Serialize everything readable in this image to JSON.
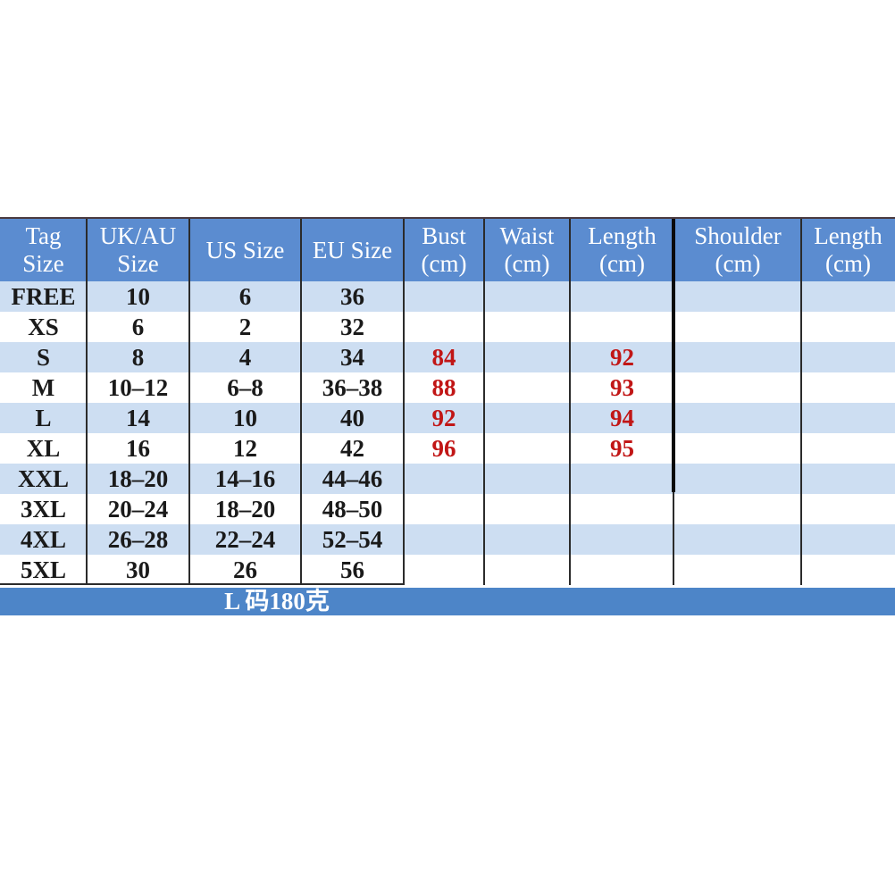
{
  "meta": {
    "description": "Clothing size conversion chart with measurements"
  },
  "colors": {
    "header_bg": "#5b8cd0",
    "footer_bg": "#4d85c8",
    "stripe_light": "#cddef2",
    "row_white": "#ffffff",
    "header_text": "#ffffff",
    "text_dark": "#1a1a1a",
    "text_red": "#c11616",
    "border": "#2b2b2b",
    "border_heavy": "#0a0a0a",
    "top_border": "#4a3a40"
  },
  "chart_data": {
    "type": "table",
    "title": "",
    "columns": [
      {
        "label": "Tag Size",
        "label_lines": [
          "Tag",
          "Size"
        ],
        "value_style": "dark"
      },
      {
        "label": "UK/AU Size",
        "label_lines": [
          "UK/AU",
          "Size"
        ],
        "value_style": "dark"
      },
      {
        "label": "US Size",
        "label_lines": [
          "US Size"
        ],
        "value_style": "dark"
      },
      {
        "label": "EU Size",
        "label_lines": [
          "EU Size"
        ],
        "value_style": "dark"
      },
      {
        "label": "Bust (cm)",
        "label_lines": [
          "Bust",
          "(cm)"
        ],
        "value_style": "red"
      },
      {
        "label": "Waist (cm)",
        "label_lines": [
          "Waist",
          "(cm)"
        ],
        "value_style": "red"
      },
      {
        "label": "Length (cm)",
        "label_lines": [
          "Length",
          "(cm)"
        ],
        "value_style": "red"
      },
      {
        "label": "Shoulder (cm)",
        "label_lines": [
          "Shoulder",
          "(cm)"
        ],
        "value_style": "red"
      },
      {
        "label": "Length (cm)",
        "label_lines": [
          "Length",
          "(cm)"
        ],
        "value_style": "red"
      }
    ],
    "rows": [
      {
        "cells": [
          "FREE",
          "10",
          "6",
          "36",
          "",
          "",
          "",
          "",
          ""
        ]
      },
      {
        "cells": [
          "XS",
          "6",
          "2",
          "32",
          "",
          "",
          "",
          "",
          ""
        ]
      },
      {
        "cells": [
          "S",
          "8",
          "4",
          "34",
          "84",
          "",
          "92",
          "",
          ""
        ]
      },
      {
        "cells": [
          "M",
          "10–12",
          "6–8",
          "36–38",
          "88",
          "",
          "93",
          "",
          ""
        ]
      },
      {
        "cells": [
          "L",
          "14",
          "10",
          "40",
          "92",
          "",
          "94",
          "",
          ""
        ]
      },
      {
        "cells": [
          "XL",
          "16",
          "12",
          "42",
          "96",
          "",
          "95",
          "",
          ""
        ]
      },
      {
        "cells": [
          "XXL",
          "18–20",
          "14–16",
          "44–46",
          "",
          "",
          "",
          "",
          ""
        ]
      },
      {
        "cells": [
          "3XL",
          "20–24",
          "18–20",
          "48–50",
          "",
          "",
          "",
          "",
          ""
        ]
      },
      {
        "cells": [
          "4XL",
          "26–28",
          "22–24",
          "52–54",
          "",
          "",
          "",
          "",
          ""
        ]
      },
      {
        "cells": [
          "5XL",
          "30",
          "26",
          "56",
          "",
          "",
          "",
          "",
          ""
        ]
      }
    ],
    "footer_note": "L 码180克",
    "layout_hints": {
      "stripe_pattern": "alternating light-blue / white starting light",
      "heavy_divider_before_column": "Shoulder (cm)",
      "last_column_clipped_at_right_edge": true
    }
  }
}
